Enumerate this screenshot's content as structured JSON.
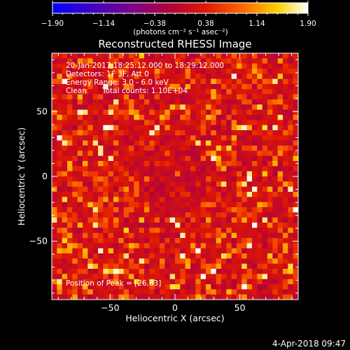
{
  "chart_data": {
    "type": "heatmap",
    "title": "Reconstructed RHESSI Image",
    "xlabel": "Heliocentric X (arcsec)",
    "ylabel": "Heliocentric Y (arcsec)",
    "xlim": [
      -95,
      95
    ],
    "ylim": [
      -95,
      95
    ],
    "xticks": [
      -50,
      0,
      50
    ],
    "yticks": [
      -50,
      0,
      50
    ],
    "xtick_labels": [
      "−50",
      "0",
      "50"
    ],
    "ytick_labels": [
      "−50",
      "0",
      "50"
    ],
    "colorbar": {
      "min": -1.9,
      "max": 1.9,
      "ticks": [
        -1.9,
        -1.14,
        -0.38,
        0.38,
        1.14,
        1.9
      ],
      "tick_labels": [
        "−1.90",
        "−1.14",
        "−0.38",
        "0.38",
        "1.14",
        "1.90"
      ],
      "units_label": "(photons cm⁻² s⁻¹ asec⁻²)",
      "colormap": [
        "#0000ff",
        "#3a00c8",
        "#7a0090",
        "#b00040",
        "#e01800",
        "#ff6a00",
        "#ffd000",
        "#ffffff"
      ]
    },
    "grid": {
      "cols": 48,
      "rows": 48,
      "pixel_arcsec": 4,
      "typical_value_range": [
        -0.2,
        1.9
      ],
      "value_distribution_note": ""
    },
    "peak": {
      "x": 26,
      "y": 83
    },
    "annotations": {
      "time": "20-Jan-2017 18:25:12.000 to 18:29:12.000",
      "detectors": "Detectors: 1F 3F, Att 0",
      "energy": "Energy Range: 3.0 - 6.0 keV",
      "method": "Clean",
      "counts": "Total counts: 1.10E+04",
      "peak_text": "Position of Peak = [26,83]"
    }
  },
  "footer": {
    "timestamp": "4-Apr-2018 09:47"
  }
}
